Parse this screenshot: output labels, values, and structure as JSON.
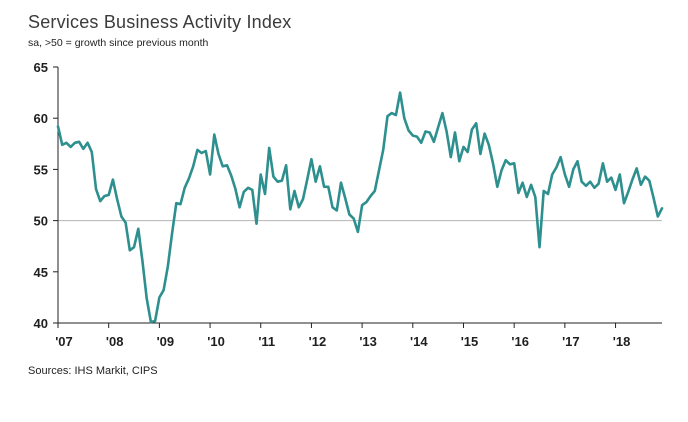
{
  "header": {
    "title": "Services Business Activity Index",
    "subtitle": "sa, >50 = growth since previous month"
  },
  "footer": {
    "source": "Sources: IHS Markit, CIPS"
  },
  "chart_data": {
    "type": "line",
    "title": "Services Business Activity Index",
    "subtitle": "sa, >50 = growth since previous month",
    "source": "Sources: IHS Markit, CIPS",
    "x_start": "2007-01",
    "x_end": "2018-12",
    "categories": [
      "'07",
      "'08",
      "'09",
      "'10",
      "'11",
      "'12",
      "'13",
      "'14",
      "'15",
      "'16",
      "'17",
      "'18"
    ],
    "ylim": [
      40,
      65
    ],
    "yticks": [
      40,
      45,
      50,
      55,
      60,
      65
    ],
    "reference_line": 50,
    "grid": "off",
    "legend": "none",
    "line_color": "#2e8f8f",
    "axis_color": "#222222",
    "reference_line_color": "#b5b5b5",
    "series": [
      {
        "name": "UK Services Business Activity Index (sa, monthly)",
        "values": [
          59.2,
          57.4,
          57.6,
          57.2,
          57.6,
          57.7,
          57.0,
          57.6,
          56.7,
          53.1,
          51.9,
          52.4,
          52.5,
          54.0,
          52.1,
          50.4,
          49.8,
          47.1,
          47.4,
          49.2,
          46.0,
          42.4,
          40.1,
          40.2,
          42.5,
          43.2,
          45.5,
          48.7,
          51.7,
          51.6,
          53.2,
          54.1,
          55.3,
          56.9,
          56.6,
          56.8,
          54.5,
          58.4,
          56.5,
          55.3,
          55.4,
          54.4,
          53.1,
          51.3,
          52.8,
          53.2,
          53.0,
          49.7,
          54.5,
          52.6,
          57.1,
          54.3,
          53.8,
          53.9,
          55.4,
          51.1,
          52.9,
          51.3,
          52.1,
          54.0,
          56.0,
          53.8,
          55.3,
          53.3,
          53.3,
          51.3,
          51.0,
          53.7,
          52.2,
          50.6,
          50.2,
          48.9,
          51.5,
          51.8,
          52.4,
          52.9,
          54.9,
          56.9,
          60.2,
          60.5,
          60.3,
          62.5,
          60.0,
          58.8,
          58.3,
          58.2,
          57.6,
          58.7,
          58.6,
          57.7,
          59.1,
          60.5,
          58.7,
          56.2,
          58.6,
          55.8,
          57.2,
          56.7,
          58.9,
          59.5,
          56.5,
          58.5,
          57.4,
          55.6,
          53.3,
          54.9,
          55.9,
          55.5,
          55.6,
          52.7,
          53.7,
          52.3,
          53.5,
          52.3,
          47.4,
          52.9,
          52.6,
          54.5,
          55.2,
          56.2,
          54.5,
          53.3,
          55.0,
          55.8,
          53.8,
          53.4,
          53.8,
          53.2,
          53.6,
          55.6,
          53.8,
          54.2,
          53.0,
          54.5,
          51.7,
          52.8,
          54.0,
          55.1,
          53.5,
          54.3,
          53.9,
          52.2,
          50.4,
          51.2
        ]
      }
    ]
  }
}
